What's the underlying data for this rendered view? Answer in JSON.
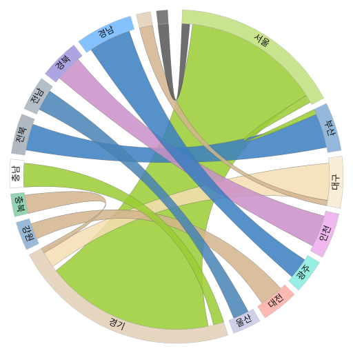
{
  "chart_data": {
    "type": "chord",
    "title": "",
    "groups": [
      {
        "name": "서울",
        "color": "#9acd32",
        "start_deg": 2,
        "end_deg": 62
      },
      {
        "name": "부산",
        "color": "#3a7ebf",
        "start_deg": 64,
        "end_deg": 81
      },
      {
        "name": "대구",
        "color": "#f5deb3",
        "start_deg": 83,
        "end_deg": 101
      },
      {
        "name": "인천",
        "color": "#e07be0",
        "start_deg": 103,
        "end_deg": 119
      },
      {
        "name": "광주",
        "color": "#40e0d0",
        "start_deg": 121,
        "end_deg": 133
      },
      {
        "name": "대전",
        "color": "#fa8072",
        "start_deg": 135,
        "end_deg": 148
      },
      {
        "name": "울산",
        "color": "#a9a9d9",
        "start_deg": 150,
        "end_deg": 160
      },
      {
        "name": "경기",
        "color": "#d2b48c",
        "start_deg": 162,
        "end_deg": 242
      },
      {
        "name": "강원",
        "color": "#4682b4",
        "start_deg": 244,
        "end_deg": 254
      },
      {
        "name": "충북",
        "color": "#3cb371",
        "start_deg": 256,
        "end_deg": 264
      },
      {
        "name": "충남",
        "color": "#ffffff",
        "start_deg": 266,
        "end_deg": 276
      },
      {
        "name": "전북",
        "color": "#708090",
        "start_deg": 278,
        "end_deg": 292
      },
      {
        "name": "전남",
        "color": "#778899",
        "start_deg": 294,
        "end_deg": 306
      },
      {
        "name": "경북",
        "color": "#6a5acd",
        "start_deg": 308,
        "end_deg": 322
      },
      {
        "name": "경남",
        "color": "#1e90ff",
        "start_deg": 324,
        "end_deg": 344
      },
      {
        "name": "",
        "color": "#d2b48c",
        "start_deg": 346,
        "end_deg": 351
      },
      {
        "name": "",
        "color": "#111111",
        "start_deg": 353,
        "end_deg": 357
      }
    ],
    "ribbons": [
      {
        "source": 0,
        "target": 7,
        "s": [
          6,
          58
        ],
        "t": [
          168,
          232
        ],
        "color": "#9acd32"
      },
      {
        "source": 1,
        "target": 11,
        "s": [
          66,
          79
        ],
        "t": [
          280,
          290
        ],
        "color": "#3a7ebf"
      },
      {
        "source": 2,
        "target": 7,
        "s": [
          85,
          99
        ],
        "t": [
          234,
          241
        ],
        "color": "#f5deb3"
      },
      {
        "source": 3,
        "target": 13,
        "s": [
          105,
          117
        ],
        "t": [
          310,
          320
        ],
        "color": "#c98fc9"
      },
      {
        "source": 4,
        "target": 14,
        "s": [
          123,
          131
        ],
        "t": [
          326,
          342
        ],
        "color": "#3a7ebf"
      },
      {
        "source": 5,
        "target": 8,
        "s": [
          137,
          146
        ],
        "t": [
          246,
          252
        ],
        "color": "#d2b48c"
      },
      {
        "source": 6,
        "target": 12,
        "s": [
          152,
          158
        ],
        "t": [
          296,
          304
        ],
        "color": "#4682b4"
      },
      {
        "source": 0,
        "target": 1,
        "s": [
          58,
          61
        ],
        "t": [
          64,
          66
        ],
        "color": "#9acd32"
      },
      {
        "source": 7,
        "target": 10,
        "s": [
          162,
          166
        ],
        "t": [
          266,
          275
        ],
        "color": "#9acd32"
      },
      {
        "source": 9,
        "target": 7,
        "s": [
          256,
          263
        ],
        "t": [
          240,
          242
        ],
        "color": "#d2b48c"
      },
      {
        "source": 15,
        "target": 2,
        "s": [
          346,
          351
        ],
        "t": [
          99,
          101
        ],
        "color": "#d2b48c"
      },
      {
        "source": 16,
        "target": 0,
        "s": [
          353,
          357
        ],
        "t": [
          2,
          5
        ],
        "color": "#555555"
      }
    ]
  }
}
